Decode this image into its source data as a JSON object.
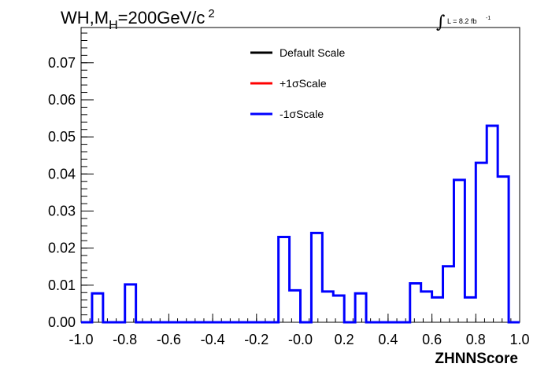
{
  "chart_data": {
    "type": "line",
    "title_parts": {
      "main": "WH,M",
      "sub": "H",
      "rest": "=200GeV/c",
      "sup": "2"
    },
    "lumi": {
      "symbol": "∫",
      "text": "L = 8.2 fb",
      "sup": "-1"
    },
    "xlabel": "ZHNNScore",
    "ylabel": "",
    "xlim": [
      -1.0,
      1.0
    ],
    "ylim": [
      0,
      0.0795
    ],
    "x_ticks": [
      "-1.0",
      "-0.8",
      "-0.6",
      "-0.4",
      "-0.2",
      "-0.0",
      "0.2",
      "0.4",
      "0.6",
      "0.8",
      "1.0"
    ],
    "y_ticks": [
      "0.00",
      "0.01",
      "0.02",
      "0.03",
      "0.04",
      "0.05",
      "0.06",
      "0.07"
    ],
    "grid": false,
    "legend_placement": "top-center",
    "legend": [
      {
        "label": "Default Scale",
        "color": "#000000"
      },
      {
        "label": "+1σScale",
        "color": "#ff0000"
      },
      {
        "label": "-1σScale",
        "color": "#0000ff"
      }
    ],
    "bin_edges": [
      -1.0,
      -0.95,
      -0.9,
      -0.85,
      -0.8,
      -0.75,
      -0.7,
      -0.65,
      -0.6,
      -0.55,
      -0.5,
      -0.45,
      -0.4,
      -0.35,
      -0.3,
      -0.25,
      -0.2,
      -0.15,
      -0.1,
      -0.05,
      0.0,
      0.05,
      0.1,
      0.15,
      0.2,
      0.25,
      0.3,
      0.35,
      0.4,
      0.45,
      0.5,
      0.55,
      0.6,
      0.65,
      0.7,
      0.75,
      0.8,
      0.85,
      0.9,
      0.95,
      1.0
    ],
    "series": [
      {
        "name": "-1σScale",
        "color": "#0000ff",
        "values": [
          0.0,
          0.0078,
          0.0,
          0.0,
          0.0102,
          0.0,
          0.0,
          0.0,
          0.0,
          0.0,
          0.0,
          0.0,
          0.0,
          0.0,
          0.0,
          0.0,
          0.0,
          0.0,
          0.023,
          0.0086,
          0.0,
          0.0241,
          0.0083,
          0.0072,
          0.0,
          0.0078,
          0.0,
          0.0,
          0.0,
          0.0,
          0.0105,
          0.0083,
          0.0067,
          0.0151,
          0.0384,
          0.0067,
          0.043,
          0.053,
          0.0393,
          0.0
        ]
      }
    ]
  }
}
